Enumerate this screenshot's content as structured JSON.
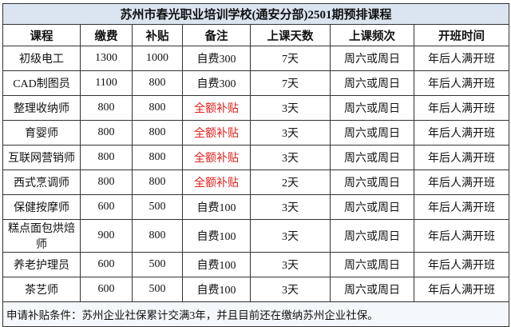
{
  "table": {
    "title": "苏州市春光职业培训学校(通安分部)2501期预排课程",
    "header": [
      "课程",
      "缴费",
      "补贴",
      "备注",
      "上课天数",
      "上课频次",
      "开班时间"
    ],
    "rows": [
      [
        "初级电工",
        "1300",
        "1000",
        "自费300",
        "7天",
        "周六或周日",
        "年后人满开班"
      ],
      [
        "CAD制图员",
        "1100",
        "800",
        "自费300",
        "7天",
        "周六或周日",
        "年后人满开班"
      ],
      [
        "整理收纳师",
        "800",
        "800",
        "全额补贴",
        "3天",
        "周六或周日",
        "年后人满开班"
      ],
      [
        "育婴师",
        "800",
        "800",
        "全额补贴",
        "3天",
        "周六或周日",
        "年后人满开班"
      ],
      [
        "互联网营销师",
        "800",
        "800",
        "全额补贴",
        "3天",
        "周六或周日",
        "年后人满开班"
      ],
      [
        "西式烹调师",
        "800",
        "800",
        "全额补贴",
        "2天",
        "周六或周日",
        "年后人满开班"
      ],
      [
        "保健按摩师",
        "600",
        "500",
        "自费100",
        "3天",
        "周六或周日",
        "年后人满开班"
      ],
      [
        "糕点面包烘焙师",
        "900",
        "800",
        "自费100",
        "3天",
        "周六或周日",
        "年后人满开班"
      ],
      [
        "养老护理员",
        "600",
        "500",
        "自费100",
        "3天",
        "周六或周日",
        "年后人满开班"
      ],
      [
        "茶艺师",
        "600",
        "500",
        "自费100",
        "3天",
        "周六或周日",
        "年后人满开班"
      ]
    ],
    "footnote": "申请补贴条件：苏州企业社保累计交满3年，并且目前还在缴纳苏州企业社保。",
    "emphasis": {
      "color": "#e0201b",
      "column": 3,
      "rows": [
        2,
        3,
        4,
        5
      ]
    }
  }
}
